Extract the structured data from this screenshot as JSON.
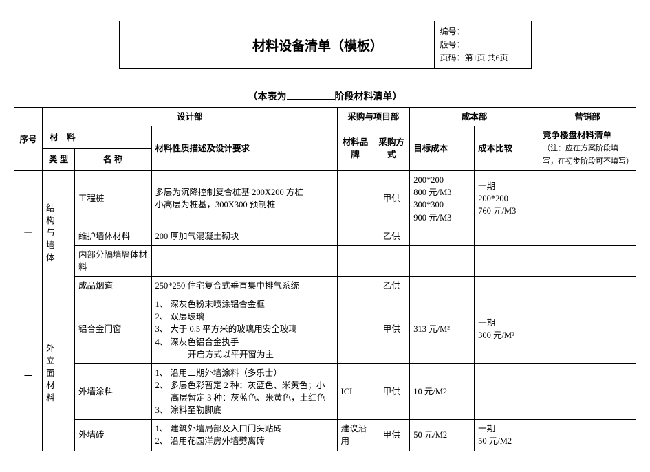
{
  "header": {
    "title": "材料设备清单（模板）",
    "code_label": "编号：",
    "version_label": "版号：",
    "page_label": "页码：第1页 共6页"
  },
  "subtitle_prefix": "（本表为",
  "subtitle_suffix": "阶段材料清单）",
  "dept_headers": {
    "seq": "序号",
    "design": "设计部",
    "purchase_proj": "采购与项目部",
    "cost": "成本部",
    "marketing": "营销部",
    "material": "材　料",
    "type": "类 型",
    "name": "名 称",
    "desc": "材料性质描述及设计要求",
    "brand": "材料品牌",
    "method": "采购方式",
    "target_cost": "目标成本",
    "cost_compare": "成本比较",
    "compete": "竞争楼盘材料清单",
    "compete_note": "（注：应在方案阶段填写，在初步阶段可不填写）"
  },
  "sections": [
    {
      "seq": "一",
      "type_label": "结构与墙体",
      "rows": [
        {
          "name": "工程桩",
          "desc": "多层为沉降控制复合桩基 200X200 方桩\n小高层为桩基，300X300 预制桩",
          "brand": "",
          "method": "甲供",
          "target": "200*200\n800 元/M3\n300*300\n900 元/M3",
          "compare": "一期\n200*200\n760 元/M3",
          "compete": ""
        },
        {
          "name": "维护墙体材料",
          "desc": "200 厚加气混凝土砌块",
          "brand": "",
          "method": "乙供",
          "target": "",
          "compare": "",
          "compete": ""
        },
        {
          "name": "内部分隔墙墙体材料",
          "desc": "",
          "brand": "",
          "method": "",
          "target": "",
          "compare": "",
          "compete": ""
        },
        {
          "name": "成品烟道",
          "desc": "250*250 住宅复合式垂直集中排气系统",
          "brand": "",
          "method": "乙供",
          "target": "",
          "compare": "",
          "compete": ""
        }
      ]
    },
    {
      "seq": "二",
      "type_label": "外立面材料",
      "rows": [
        {
          "name": "铝合金门窗",
          "desc_list": [
            "1、 深灰色粉末喷涂铝合金框",
            "2、 双层玻璃",
            "3、 大于 0.5 平方米的玻璃用安全玻璃",
            "4、 深灰色铝合金执手\n　　开启方式以平开窗为主"
          ],
          "brand": "",
          "method": "甲供",
          "target": "313 元/M²",
          "compare": "一期\n300 元/M²",
          "compete": ""
        },
        {
          "name": "外墙涂料",
          "desc_list": [
            "1、 沿用二期外墙涂料（多乐士）",
            "2、 多层色彩暂定 2 种：灰蓝色、米黄色；小高层暂定 3 种：灰蓝色、米黄色，土红色",
            "3、 涂料至勒脚底"
          ],
          "brand": "ICI",
          "method": "甲供",
          "target": "10 元/M2",
          "compare": "",
          "compete": ""
        },
        {
          "name": "外墙砖",
          "desc_list": [
            "1、 建筑外墙局部及入口门头贴砖",
            "2、 沿用花园洋房外墙劈离砖"
          ],
          "brand": "建议沿用",
          "method": "甲供",
          "target": "50 元/M2",
          "compare": "一期\n50 元/M2",
          "compete": ""
        }
      ]
    }
  ]
}
